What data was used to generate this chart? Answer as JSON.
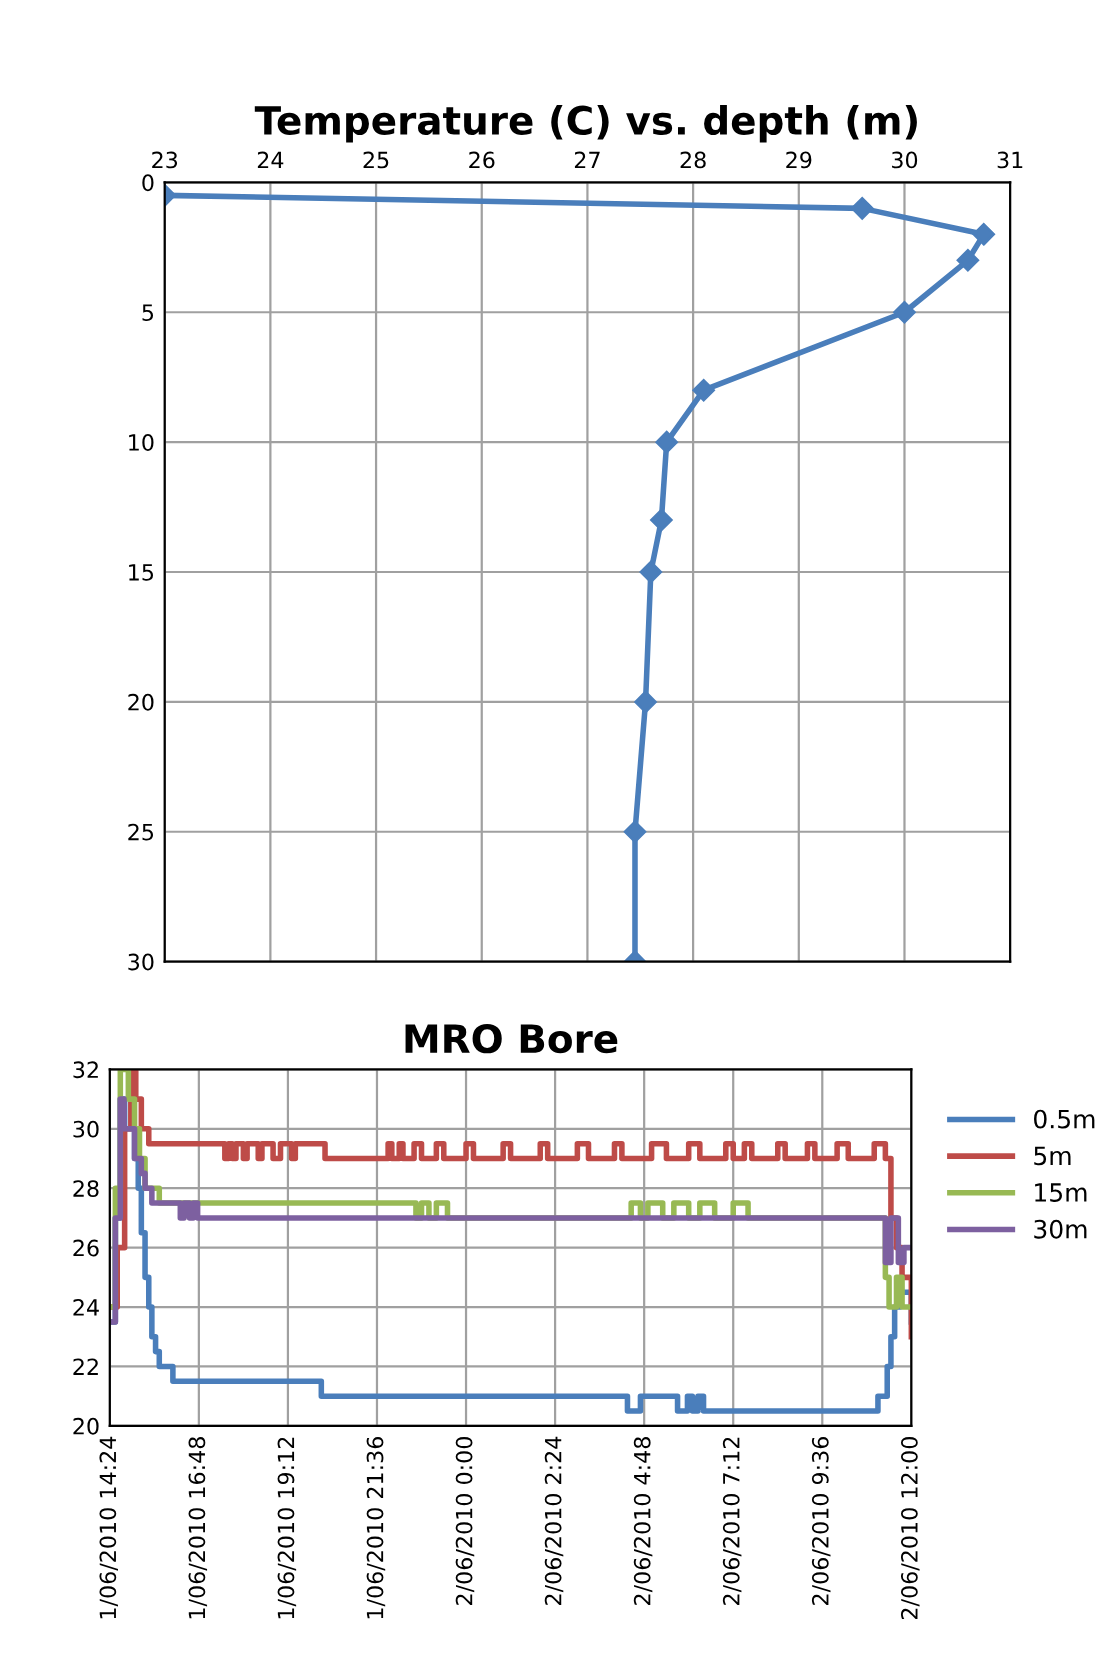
{
  "chart_data": [
    {
      "type": "line",
      "title": "Temperature (C) vs. depth (m)",
      "xlim": [
        23,
        31
      ],
      "xticks": [
        23,
        24,
        25,
        26,
        27,
        28,
        29,
        30,
        31
      ],
      "ylim": [
        30,
        0
      ],
      "yticks": [
        0,
        5,
        10,
        15,
        20,
        25,
        30
      ],
      "grid": true,
      "marker": "diamond",
      "line_style": "solid",
      "legend": false,
      "series": [
        {
          "color": "#4a7ebb",
          "x": [
            23.0,
            29.6,
            30.75,
            30.6,
            30.0,
            28.1,
            27.75,
            27.7,
            27.6,
            27.55,
            27.45,
            27.45
          ],
          "values": [
            0.5,
            1,
            2,
            3,
            5,
            8,
            10,
            13,
            15,
            20,
            25,
            30
          ]
        }
      ]
    },
    {
      "type": "step",
      "title": "MRO Bore",
      "xlim": [
        "2010-06-01T14:24",
        "2010-06-02T12:00"
      ],
      "xticks": [
        {
          "value": "2010-06-01T14:24",
          "label": "1/06/2010 14:24"
        },
        {
          "value": "2010-06-01T16:48",
          "label": "1/06/2010 16:48"
        },
        {
          "value": "2010-06-01T19:12",
          "label": "1/06/2010 19:12"
        },
        {
          "value": "2010-06-01T21:36",
          "label": "1/06/2010 21:36"
        },
        {
          "value": "2010-06-02T00:00",
          "label": "2/06/2010 0:00"
        },
        {
          "value": "2010-06-02T02:24",
          "label": "2/06/2010 2:24"
        },
        {
          "value": "2010-06-02T04:48",
          "label": "2/06/2010 4:48"
        },
        {
          "value": "2010-06-02T07:12",
          "label": "2/06/2010 7:12"
        },
        {
          "value": "2010-06-02T09:36",
          "label": "2/06/2010 9:36"
        },
        {
          "value": "2010-06-02T12:00",
          "label": "2/06/2010 12:00"
        }
      ],
      "ylim": [
        20,
        32
      ],
      "yticks": [
        20,
        22,
        24,
        26,
        28,
        30,
        32
      ],
      "grid": true,
      "legend": "right",
      "marker": "none",
      "series": [
        {
          "name": "0.5m",
          "color": "#4a7ebb",
          "x": [
            "2010-06-01T14:24",
            "2010-06-01T14:33",
            "2010-06-01T14:41",
            "2010-06-01T14:48",
            "2010-06-01T15:04",
            "2010-06-01T15:10",
            "2010-06-01T15:15",
            "2010-06-01T15:21",
            "2010-06-01T15:27",
            "2010-06-01T15:32",
            "2010-06-01T15:38",
            "2010-06-01T15:44",
            "2010-06-01T16:06",
            "2010-06-01T20:06",
            "2010-06-02T04:21",
            "2010-06-02T04:42",
            "2010-06-02T05:42",
            "2010-06-02T05:58",
            "2010-06-02T06:06",
            "2010-06-02T06:15",
            "2010-06-02T06:24",
            "2010-06-02T11:06",
            "2010-06-02T11:21",
            "2010-06-02T11:27",
            "2010-06-02T11:33",
            "2010-06-02T11:42",
            "2010-06-02T12:00"
          ],
          "values": [
            23.5,
            27,
            31,
            30,
            29,
            28,
            26.5,
            25,
            24,
            23,
            22.5,
            22,
            21.5,
            21,
            20.5,
            21,
            20.5,
            21,
            20.5,
            21,
            20.5,
            21,
            22,
            23,
            24,
            24.5,
            23.5
          ]
        },
        {
          "name": "5m",
          "color": "#be4b48",
          "x": [
            "2010-06-01T14:24",
            "2010-06-01T14:36",
            "2010-06-01T14:48",
            "2010-06-01T14:58",
            "2010-06-01T15:06",
            "2010-06-01T15:15",
            "2010-06-01T15:27",
            "2010-06-01T17:30",
            "2010-06-01T17:36",
            "2010-06-01T17:42",
            "2010-06-01T17:48",
            "2010-06-01T18:00",
            "2010-06-01T18:06",
            "2010-06-01T18:24",
            "2010-06-01T18:30",
            "2010-06-01T18:48",
            "2010-06-01T19:00",
            "2010-06-01T19:18",
            "2010-06-01T19:24",
            "2010-06-01T20:12",
            "2010-06-01T21:54",
            "2010-06-01T22:00",
            "2010-06-01T22:12",
            "2010-06-01T22:18",
            "2010-06-01T22:36",
            "2010-06-01T22:48",
            "2010-06-01T23:12",
            "2010-06-01T23:24",
            "2010-06-02T00:00",
            "2010-06-02T00:12",
            "2010-06-02T01:00",
            "2010-06-02T01:12",
            "2010-06-02T02:00",
            "2010-06-02T02:12",
            "2010-06-02T03:00",
            "2010-06-02T03:18",
            "2010-06-02T04:00",
            "2010-06-02T04:12",
            "2010-06-02T05:00",
            "2010-06-02T05:24",
            "2010-06-02T06:00",
            "2010-06-02T06:18",
            "2010-06-02T07:00",
            "2010-06-02T07:12",
            "2010-06-02T07:30",
            "2010-06-02T07:42",
            "2010-06-02T08:24",
            "2010-06-02T08:36",
            "2010-06-02T09:12",
            "2010-06-02T09:24",
            "2010-06-02T10:00",
            "2010-06-02T10:18",
            "2010-06-02T11:00",
            "2010-06-02T11:18",
            "2010-06-02T11:27",
            "2010-06-02T11:36",
            "2010-06-02T11:45",
            "2010-06-02T12:00"
          ],
          "values": [
            24,
            26,
            30,
            32,
            31,
            30,
            29.5,
            29,
            29.5,
            29,
            29.5,
            29,
            29.5,
            29,
            29.5,
            29,
            29.5,
            29,
            29.5,
            29,
            29.5,
            29,
            29.5,
            29,
            29.5,
            29,
            29.5,
            29,
            29.5,
            29,
            29.5,
            29,
            29.5,
            29,
            29.5,
            29,
            29.5,
            29,
            29.5,
            29,
            29.5,
            29,
            29.5,
            29,
            29.5,
            29,
            29.5,
            29,
            29.5,
            29,
            29.5,
            29,
            29.5,
            29,
            27,
            26,
            25,
            23
          ]
        },
        {
          "name": "15m",
          "color": "#98b954",
          "x": [
            "2010-06-01T14:24",
            "2010-06-01T14:33",
            "2010-06-01T14:41",
            "2010-06-01T14:54",
            "2010-06-01T15:04",
            "2010-06-01T15:12",
            "2010-06-01T15:21",
            "2010-06-01T15:32",
            "2010-06-01T15:44",
            "2010-06-01T22:39",
            "2010-06-01T22:48",
            "2010-06-01T23:00",
            "2010-06-01T23:12",
            "2010-06-01T23:30",
            "2010-06-02T04:27",
            "2010-06-02T04:42",
            "2010-06-02T04:54",
            "2010-06-02T05:18",
            "2010-06-02T05:36",
            "2010-06-02T06:00",
            "2010-06-02T06:18",
            "2010-06-02T06:42",
            "2010-06-02T07:12",
            "2010-06-02T07:36",
            "2010-06-02T08:06",
            "2010-06-02T11:18",
            "2010-06-02T11:24",
            "2010-06-02T11:36",
            "2010-06-02T11:45",
            "2010-06-02T12:00"
          ],
          "values": [
            24,
            28,
            32,
            31,
            30,
            29,
            28,
            28,
            27.5,
            27,
            27.5,
            27,
            27.5,
            27,
            27.5,
            27,
            27.5,
            27,
            27.5,
            27,
            27.5,
            27,
            27.5,
            27,
            27,
            25,
            24,
            25,
            24,
            24
          ]
        },
        {
          "name": "30m",
          "color": "#7d60a0",
          "x": [
            "2010-06-01T14:24",
            "2010-06-01T14:33",
            "2010-06-01T14:41",
            "2010-06-01T14:47",
            "2010-06-01T15:04",
            "2010-06-01T15:15",
            "2010-06-01T15:21",
            "2010-06-01T15:32",
            "2010-06-01T16:18",
            "2010-06-01T16:24",
            "2010-06-01T16:33",
            "2010-06-01T16:39",
            "2010-06-01T16:46",
            "2010-06-02T11:18",
            "2010-06-02T11:27",
            "2010-06-02T11:39",
            "2010-06-02T11:48",
            "2010-06-02T12:00"
          ],
          "values": [
            23.5,
            27,
            31,
            30,
            29,
            28.5,
            28,
            27.5,
            27,
            27.5,
            27,
            27.5,
            27,
            25.5,
            27,
            25.5,
            26,
            26
          ]
        }
      ]
    }
  ]
}
